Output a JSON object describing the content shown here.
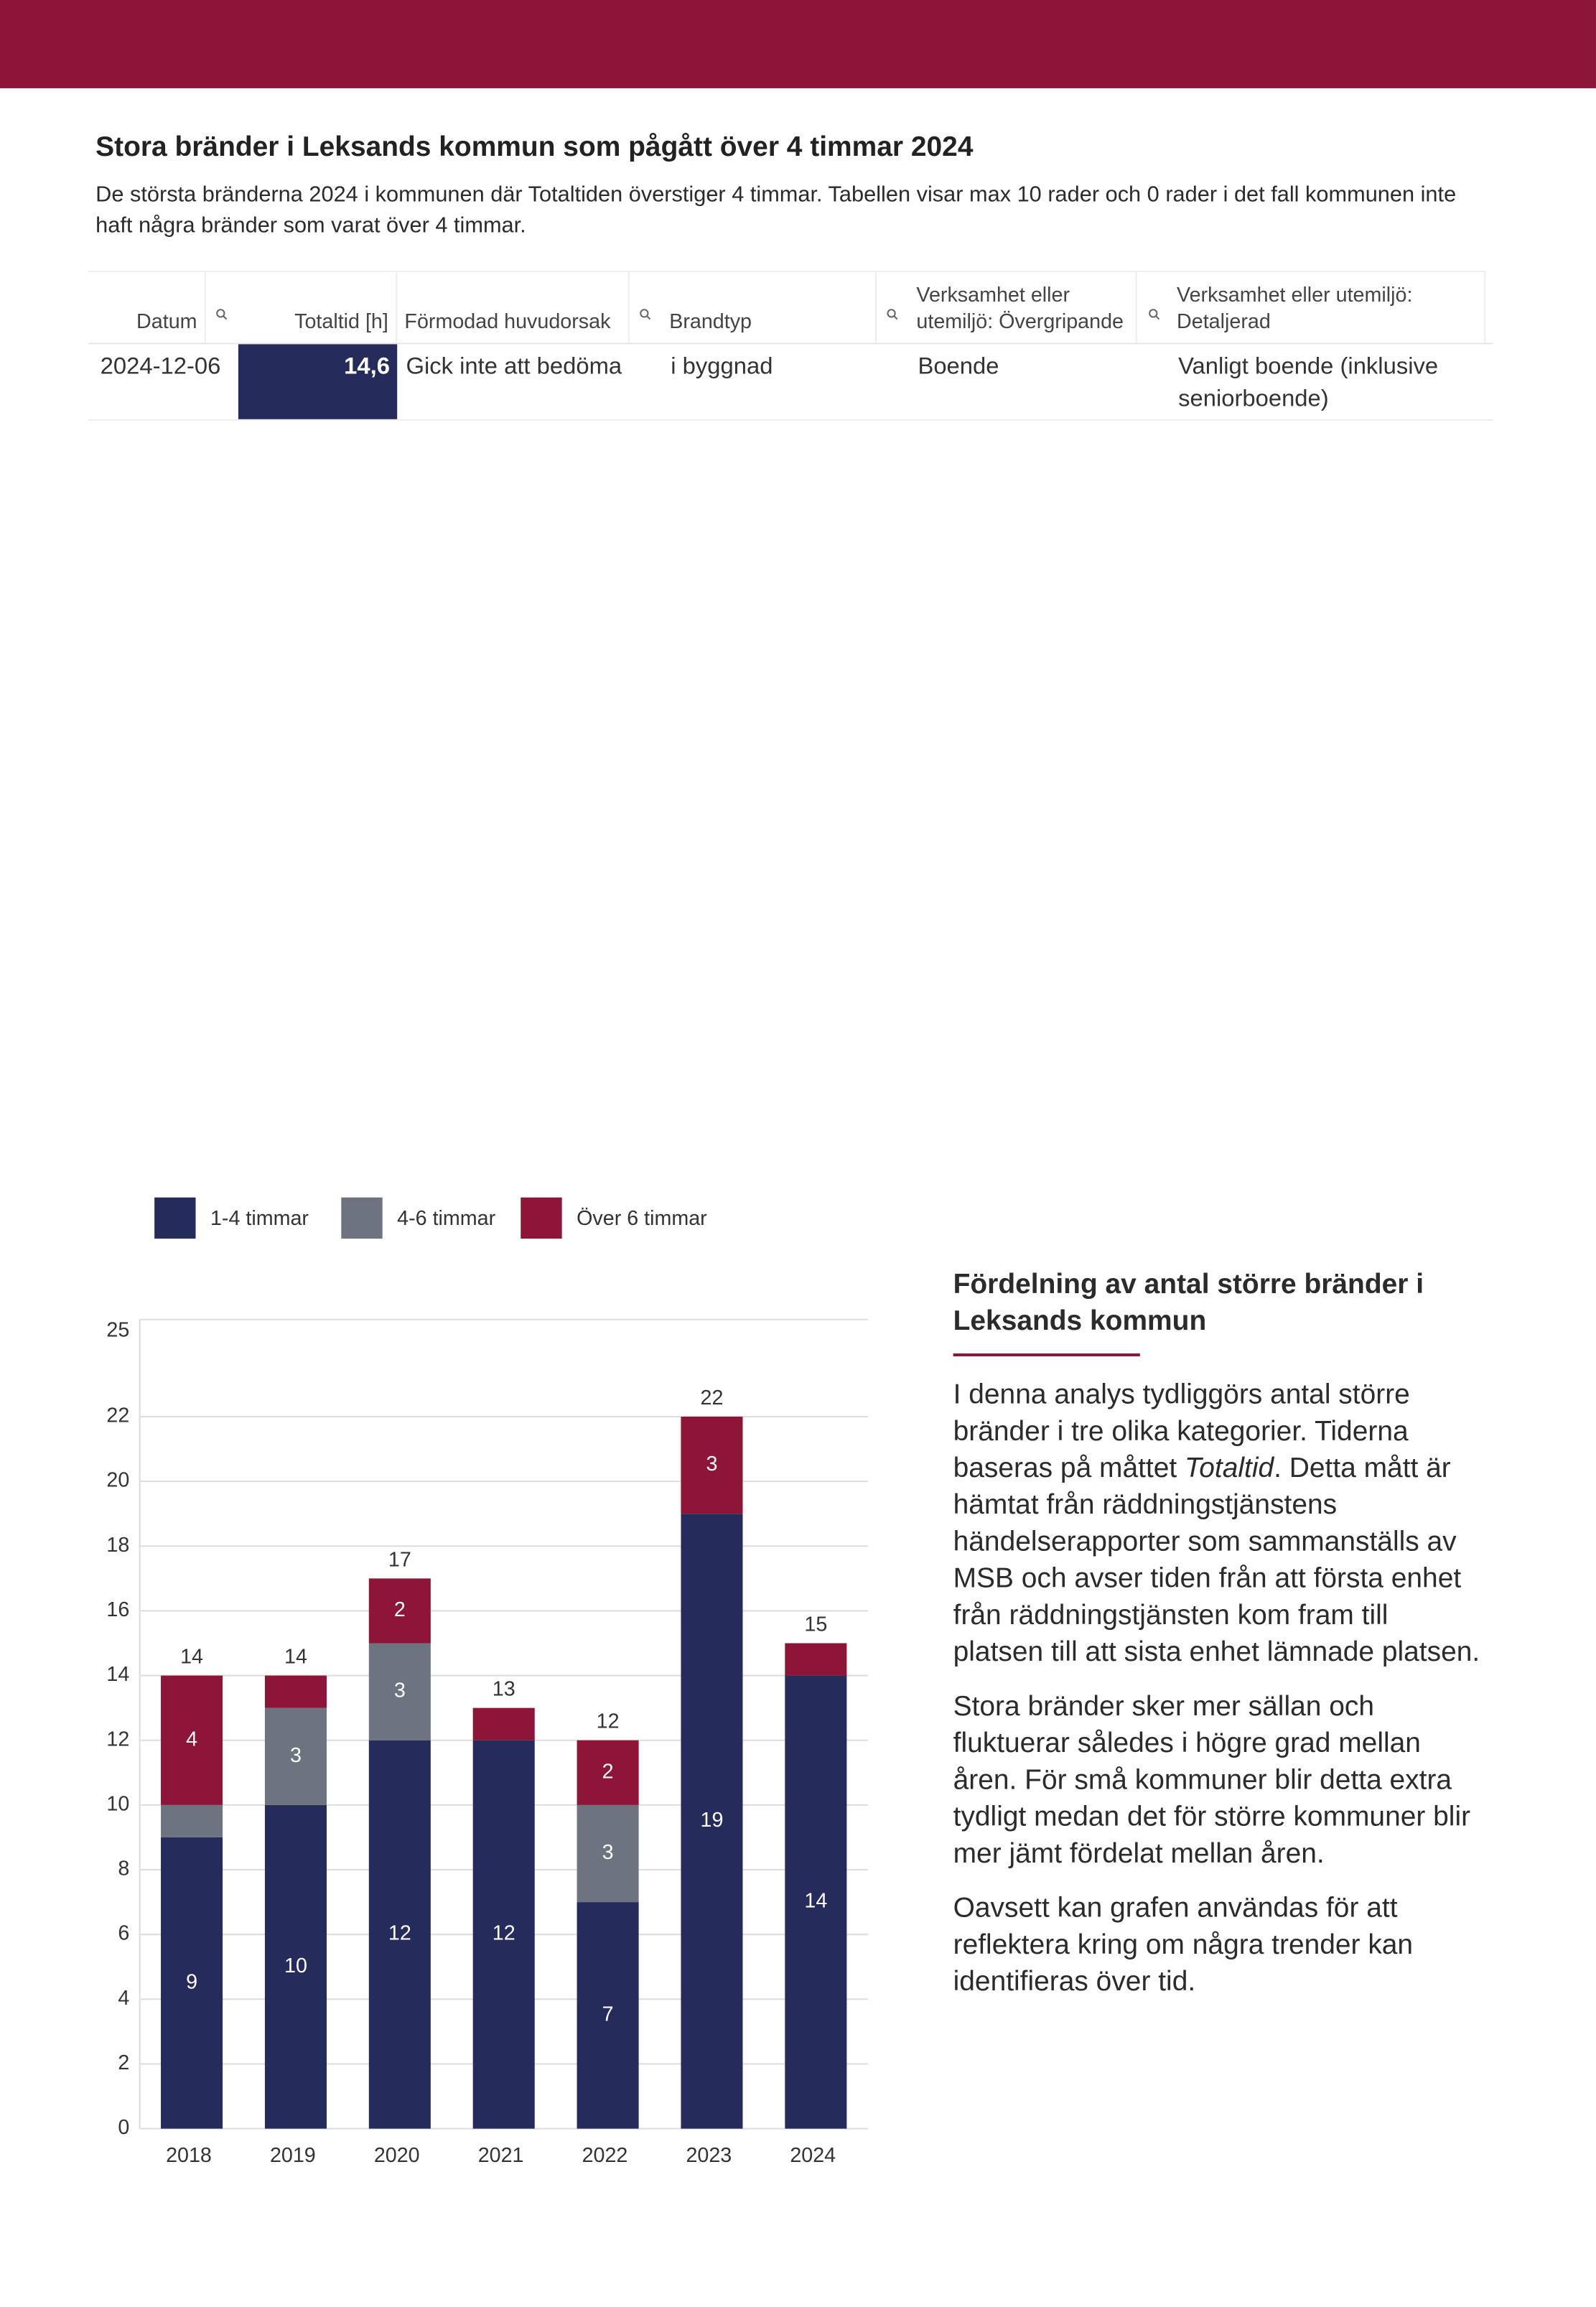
{
  "header": {
    "title": "Stora bränder i Leksands kommun som pågått över 4 timmar 2024",
    "description": "De största bränderna 2024 i kommunen där Totaltiden överstiger 4 timmar. Tabellen visar max 10 rader och 0 rader i det fall kommunen inte haft några bränder som varat över 4 timmar."
  },
  "table": {
    "columns": [
      "Datum",
      "Totaltid [h]",
      "Förmodad huvudorsak",
      "Brandtyp",
      "Verksamhet eller utemiljö: Övergripande",
      "Verksamhet eller utemiljö: Detaljerad"
    ],
    "rows": [
      [
        "2024-12-06",
        "14,6",
        "Gick inte att bedöma",
        "i byggnad",
        "Boende",
        "Vanligt boende (inklusive seniorboende)"
      ]
    ]
  },
  "chart_data": {
    "type": "stacked-bar",
    "categories": [
      "2018",
      "2019",
      "2020",
      "2021",
      "2022",
      "2023",
      "2024"
    ],
    "series": [
      {
        "name": "1-4 timmar",
        "color": "#252c5c",
        "values": [
          9,
          10,
          12,
          12,
          7,
          19,
          14
        ],
        "value_labels": [
          9,
          10,
          12,
          12,
          7,
          19,
          14
        ]
      },
      {
        "name": "4-6 timmar",
        "color": "#6e747f",
        "values": [
          1,
          3,
          3,
          0,
          3,
          0,
          0
        ],
        "value_labels": [
          null,
          3,
          3,
          null,
          3,
          null,
          null
        ]
      },
      {
        "name": "Över 6 timmar",
        "color": "#8c1538",
        "values": [
          4,
          1,
          2,
          1,
          2,
          3,
          1
        ],
        "value_labels": [
          4,
          null,
          2,
          null,
          2,
          3,
          null
        ]
      }
    ],
    "totals": [
      14,
      14,
      17,
      13,
      12,
      22,
      15
    ],
    "ylim": [
      0,
      25
    ],
    "yticks": [
      0,
      2,
      4,
      6,
      8,
      10,
      12,
      14,
      16,
      18,
      20,
      22,
      25
    ],
    "grid": true,
    "legend": "top"
  },
  "side_text": {
    "heading": "Fördelning av antal större bränder i Leksands kommun",
    "paragraphs": [
      [
        "I denna analys tydliggörs antal större bränder i tre olika kategorier. Tiderna baseras på måttet ",
        "Totaltid",
        ". Detta mått är hämtat från räddningstjänstens händelserapporter som sammanställs av MSB och avser tiden från att första enhet från räddningstjänsten kom fram till platsen till att sista enhet lämnade platsen."
      ],
      "Stora bränder sker mer sällan och fluktuerar således i högre grad mellan åren. För små kommuner blir detta extra tydligt medan det för större kommuner blir mer jämt fördelat mellan åren.",
      "Oavsett kan grafen användas för att reflektera kring om några trender kan identifieras över tid."
    ]
  }
}
